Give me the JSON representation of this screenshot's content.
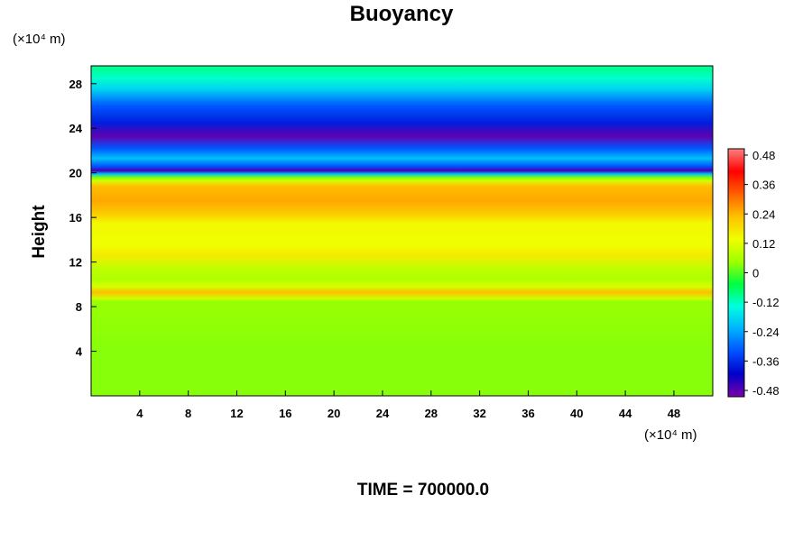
{
  "chart_data": {
    "type": "heatmap",
    "title": "Buoyancy",
    "xlabel": "",
    "ylabel": "Height",
    "x_unit_label": "(×10⁴ m)",
    "y_unit_label": "(×10⁴ m)",
    "xlim": [
      0,
      51.2
    ],
    "ylim": [
      0,
      29.6
    ],
    "x_ticks": [
      4,
      8,
      12,
      16,
      20,
      24,
      28,
      32,
      36,
      40,
      44,
      48
    ],
    "y_ticks": [
      4,
      8,
      12,
      16,
      20,
      24,
      28
    ],
    "colorbar": {
      "ticks": [
        "0.48",
        "0.36",
        "0.24",
        "0.12",
        "0",
        "-0.12",
        "-0.24",
        "-0.36",
        "-0.48"
      ],
      "range": [
        -0.48,
        0.48
      ],
      "colormap": [
        "#7b00a8",
        "#0000c8",
        "#0050ff",
        "#00b0ff",
        "#00ffe0",
        "#00ff40",
        "#a0ff00",
        "#f0ff00",
        "#ffc000",
        "#ff6000",
        "#ff0000",
        "#ff8080"
      ]
    },
    "profile": [
      {
        "height": 0.0,
        "value": 0.03
      },
      {
        "height": 4.0,
        "value": 0.03
      },
      {
        "height": 8.5,
        "value": 0.04
      },
      {
        "height": 8.7,
        "value": 0.09
      },
      {
        "height": 9.3,
        "value": 0.22
      },
      {
        "height": 9.8,
        "value": 0.1
      },
      {
        "height": 10.5,
        "value": 0.06
      },
      {
        "height": 11.5,
        "value": 0.08
      },
      {
        "height": 12.6,
        "value": 0.16
      },
      {
        "height": 13.5,
        "value": 0.13
      },
      {
        "height": 15.5,
        "value": 0.14
      },
      {
        "height": 16.3,
        "value": 0.2
      },
      {
        "height": 17.5,
        "value": 0.24
      },
      {
        "height": 18.8,
        "value": 0.22
      },
      {
        "height": 19.3,
        "value": 0.1
      },
      {
        "height": 19.6,
        "value": 0.02
      },
      {
        "height": 19.9,
        "value": -0.2
      },
      {
        "height": 20.2,
        "value": -0.44
      },
      {
        "height": 20.6,
        "value": -0.3
      },
      {
        "height": 21.3,
        "value": -0.2
      },
      {
        "height": 22.2,
        "value": -0.3
      },
      {
        "height": 23.3,
        "value": -0.46
      },
      {
        "height": 24.5,
        "value": -0.36
      },
      {
        "height": 26.0,
        "value": -0.3
      },
      {
        "height": 27.5,
        "value": -0.18
      },
      {
        "height": 28.5,
        "value": -0.12
      },
      {
        "height": 29.6,
        "value": -0.08
      }
    ],
    "footer": "TIME = 700000.0"
  }
}
